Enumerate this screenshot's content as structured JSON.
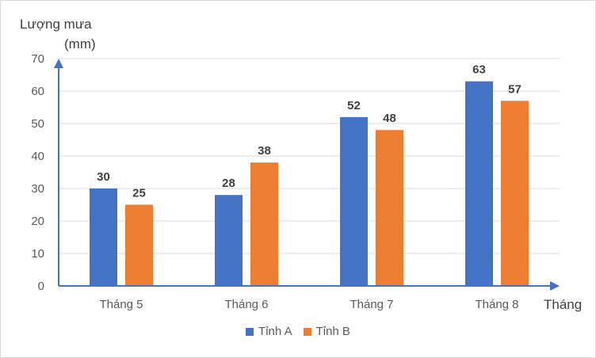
{
  "chart_data": {
    "type": "bar",
    "ylabel_line1": "Lượng mưa",
    "ylabel_line2": "(mm)",
    "xlabel": "Tháng",
    "categories": [
      "Tháng 5",
      "Tháng 6",
      "Tháng 7",
      "Tháng 8"
    ],
    "series": [
      {
        "name": "Tỉnh A",
        "color": "#4472c4",
        "values": [
          30,
          28,
          52,
          63
        ]
      },
      {
        "name": "Tỉnh B",
        "color": "#ed7d31",
        "values": [
          25,
          38,
          48,
          57
        ]
      }
    ],
    "ylim": [
      0,
      70
    ],
    "yticks": [
      0,
      10,
      20,
      30,
      40,
      50,
      60,
      70
    ],
    "grid": true,
    "legend_position": "bottom",
    "axis_color": "#4472c4"
  }
}
